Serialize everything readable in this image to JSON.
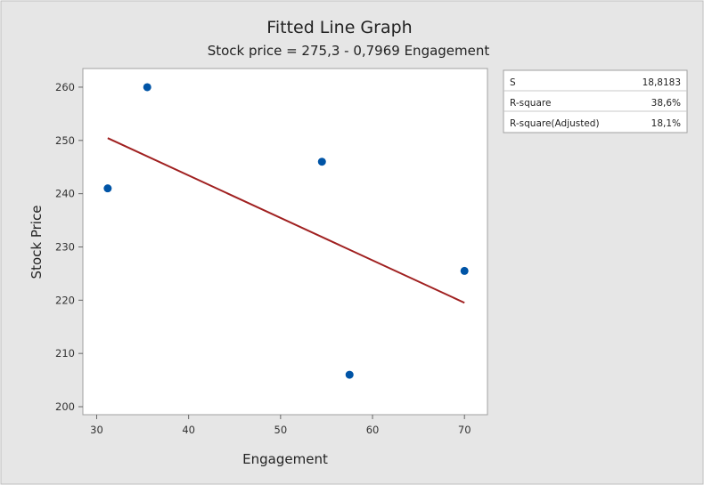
{
  "chart_data": {
    "type": "scatter",
    "title": "Fitted Line Graph",
    "subtitle": "Stock price = 275,3 - 0,7969 Engagement",
    "xlabel": "Engagement",
    "ylabel": "Stock Price",
    "xlim": [
      28.5,
      72.5
    ],
    "ylim": [
      198.5,
      263.5
    ],
    "xticks": [
      30,
      40,
      50,
      60,
      70
    ],
    "yticks": [
      200,
      210,
      220,
      230,
      240,
      250,
      260
    ],
    "grid": false,
    "points": [
      {
        "x": 31.2,
        "y": 241
      },
      {
        "x": 35.5,
        "y": 260
      },
      {
        "x": 54.5,
        "y": 246
      },
      {
        "x": 57.5,
        "y": 206
      },
      {
        "x": 70.0,
        "y": 225.5
      }
    ],
    "fit_line": {
      "intercept": 275.3,
      "slope": -0.7969,
      "x_range": [
        31.2,
        70.0
      ]
    },
    "colors": {
      "point": "#0054a6",
      "fit_line": "#a02020",
      "frame_bg": "#e6e6e6",
      "plot_bg": "#ffffff",
      "stats_bg": "#ffffff"
    },
    "stats_table": [
      {
        "label": "S",
        "value": "18,8183"
      },
      {
        "label": "R-square",
        "value": "38,6%"
      },
      {
        "label": "R-square(Adjusted)",
        "value": "18,1%"
      }
    ]
  }
}
